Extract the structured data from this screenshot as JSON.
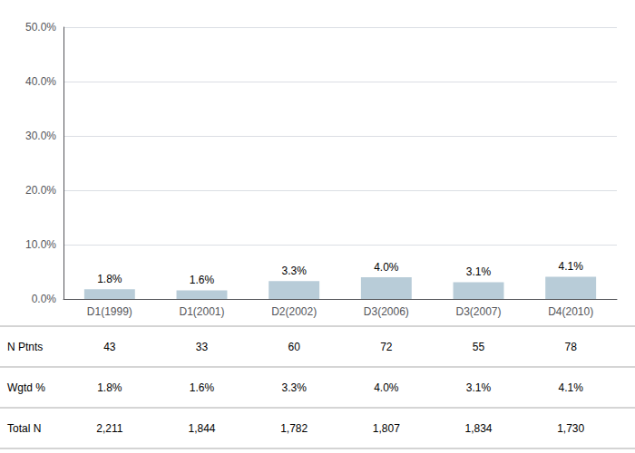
{
  "chart_data": {
    "type": "bar",
    "categories": [
      "D1(1999)",
      "D1(2001)",
      "D2(2002)",
      "D3(2006)",
      "D3(2007)",
      "D4(2010)"
    ],
    "values": [
      1.8,
      1.6,
      3.3,
      4.0,
      3.1,
      4.1
    ],
    "value_labels": [
      "1.8%",
      "1.6%",
      "3.3%",
      "4.0%",
      "3.1%",
      "4.1%"
    ],
    "data_labels": true,
    "color": "#b8ccd8",
    "ylim": [
      0,
      50
    ],
    "yticks": [
      {
        "value": 0,
        "label": "0.0%"
      },
      {
        "value": 10,
        "label": "10.0%"
      },
      {
        "value": 20,
        "label": "20.0%"
      },
      {
        "value": 30,
        "label": "30.0%"
      },
      {
        "value": 40,
        "label": "40.0%"
      },
      {
        "value": 50,
        "label": "50.0%"
      }
    ],
    "grid": true,
    "table": [
      {
        "label": "N Ptnts",
        "values": [
          43,
          33,
          60,
          72,
          55,
          78
        ]
      },
      {
        "label": "Wgtd %",
        "values": [
          1.8,
          1.6,
          3.3,
          4.0,
          3.1,
          4.1
        ],
        "value_labels": [
          "1.8%",
          "1.6%",
          "3.3%",
          "4.0%",
          "3.1%",
          "4.1%"
        ]
      },
      {
        "label": "Total N",
        "values": [
          2211,
          1844,
          1782,
          1807,
          1834,
          1730
        ],
        "value_labels": [
          "2,211",
          "1,844",
          "1,782",
          "1,807",
          "1,834",
          "1,730"
        ]
      }
    ]
  }
}
